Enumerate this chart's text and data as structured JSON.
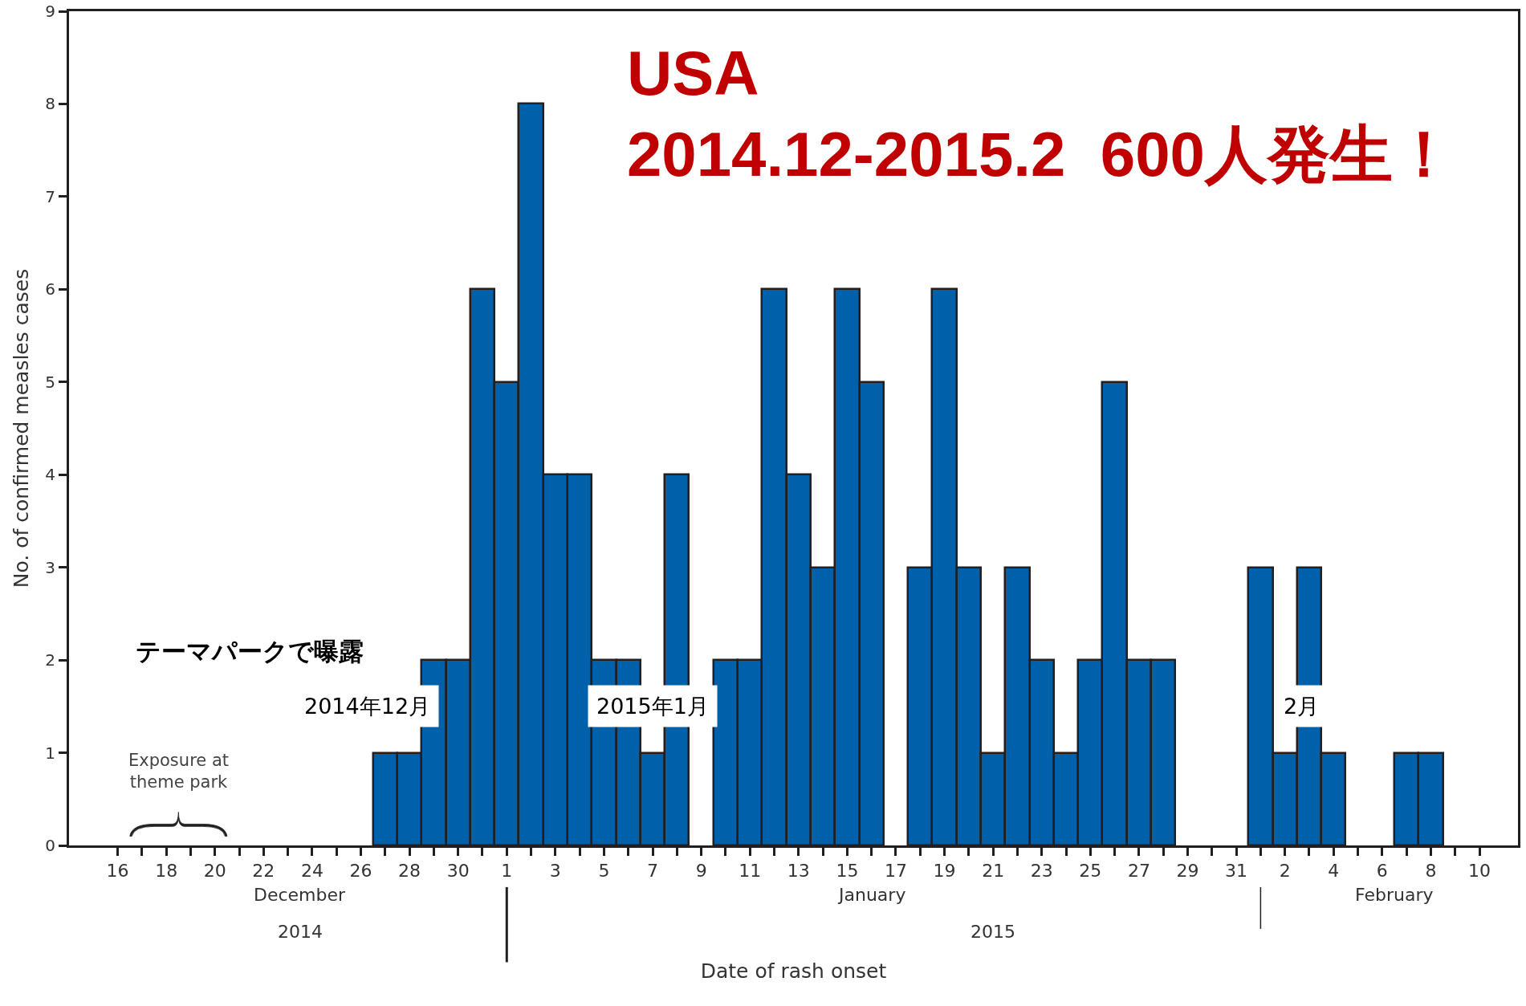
{
  "chart_data": {
    "type": "bar",
    "title": "USA\n2014.12-2015.2  600人発生！",
    "xlabel": "Date of rash onset",
    "ylabel": "No. of confirmed measles cases",
    "x": [
      "2014-12-27",
      "2014-12-28",
      "2014-12-29",
      "2014-12-30",
      "2014-12-31",
      "2015-01-01",
      "2015-01-02",
      "2015-01-03",
      "2015-01-04",
      "2015-01-05",
      "2015-01-06",
      "2015-01-07",
      "2015-01-08",
      "2015-01-10",
      "2015-01-11",
      "2015-01-12",
      "2015-01-13",
      "2015-01-14",
      "2015-01-15",
      "2015-01-16",
      "2015-01-18",
      "2015-01-19",
      "2015-01-20",
      "2015-01-21",
      "2015-01-22",
      "2015-01-23",
      "2015-01-24",
      "2015-01-25",
      "2015-01-26",
      "2015-01-27",
      "2015-01-28",
      "2015-02-01",
      "2015-02-02",
      "2015-02-03",
      "2015-02-04",
      "2015-02-07",
      "2015-02-08"
    ],
    "values": [
      1,
      1,
      2,
      2,
      6,
      5,
      8,
      4,
      4,
      2,
      2,
      1,
      4,
      2,
      2,
      6,
      4,
      3,
      6,
      5,
      3,
      6,
      3,
      1,
      3,
      2,
      1,
      2,
      5,
      2,
      2,
      3,
      1,
      3,
      1,
      1,
      1
    ],
    "color": "#0060aa",
    "grid": false,
    "legend": false,
    "ylim": [
      0,
      9
    ],
    "yticks": [
      0,
      1,
      2,
      3,
      4,
      5,
      6,
      7,
      8,
      9
    ],
    "xlim": [
      "2014-12-14",
      "2015-02-11T14:00"
    ],
    "xticks": [
      {
        "value": "2014-12-16",
        "label": "16"
      },
      {
        "value": "2014-12-17",
        "label": null
      },
      {
        "value": "2014-12-18",
        "label": "18"
      },
      {
        "value": "2014-12-19",
        "label": null
      },
      {
        "value": "2014-12-20",
        "label": "20"
      },
      {
        "value": "2014-12-21",
        "label": null
      },
      {
        "value": "2014-12-22",
        "label": "22"
      },
      {
        "value": "2014-12-23",
        "label": null
      },
      {
        "value": "2014-12-24",
        "label": "24"
      },
      {
        "value": "2014-12-25",
        "label": null
      },
      {
        "value": "2014-12-26",
        "label": "26"
      },
      {
        "value": "2014-12-27",
        "label": null
      },
      {
        "value": "2014-12-28",
        "label": "28"
      },
      {
        "value": "2014-12-29",
        "label": null
      },
      {
        "value": "2014-12-30",
        "label": "30"
      },
      {
        "value": "2014-12-31",
        "label": null
      },
      {
        "value": "2015-01-01",
        "label": "1"
      },
      {
        "value": "2015-01-02",
        "label": null
      },
      {
        "value": "2015-01-03",
        "label": "3"
      },
      {
        "value": "2015-01-04",
        "label": null
      },
      {
        "value": "2015-01-05",
        "label": "5"
      },
      {
        "value": "2015-01-06",
        "label": null
      },
      {
        "value": "2015-01-07",
        "label": "7"
      },
      {
        "value": "2015-01-08",
        "label": null
      },
      {
        "value": "2015-01-09",
        "label": "9"
      },
      {
        "value": "2015-01-10",
        "label": null
      },
      {
        "value": "2015-01-11",
        "label": "11"
      },
      {
        "value": "2015-01-12",
        "label": null
      },
      {
        "value": "2015-01-13",
        "label": "13"
      },
      {
        "value": "2015-01-14",
        "label": null
      },
      {
        "value": "2015-01-15",
        "label": "15"
      },
      {
        "value": "2015-01-16",
        "label": null
      },
      {
        "value": "2015-01-17",
        "label": "17"
      },
      {
        "value": "2015-01-18",
        "label": null
      },
      {
        "value": "2015-01-19",
        "label": "19"
      },
      {
        "value": "2015-01-20",
        "label": null
      },
      {
        "value": "2015-01-21",
        "label": "21"
      },
      {
        "value": "2015-01-22",
        "label": null
      },
      {
        "value": "2015-01-23",
        "label": "23"
      },
      {
        "value": "2015-01-24",
        "label": null
      },
      {
        "value": "2015-01-25",
        "label": "25"
      },
      {
        "value": "2015-01-26",
        "label": null
      },
      {
        "value": "2015-01-27",
        "label": "27"
      },
      {
        "value": "2015-01-28",
        "label": null
      },
      {
        "value": "2015-01-29",
        "label": "29"
      },
      {
        "value": "2015-01-30",
        "label": null
      },
      {
        "value": "2015-01-31",
        "label": "31"
      },
      {
        "value": "2015-02-01",
        "label": null
      },
      {
        "value": "2015-02-02",
        "label": "2"
      },
      {
        "value": "2015-02-03",
        "label": null
      },
      {
        "value": "2015-02-04",
        "label": "4"
      },
      {
        "value": "2015-02-05",
        "label": null
      },
      {
        "value": "2015-02-06",
        "label": "6"
      },
      {
        "value": "2015-02-07",
        "label": null
      },
      {
        "value": "2015-02-08",
        "label": "8"
      },
      {
        "value": "2015-02-09",
        "label": null
      },
      {
        "value": "2015-02-10",
        "label": "10"
      }
    ],
    "annotations": [
      "December",
      "January",
      "February",
      "2014",
      "2015",
      "Exposure at\ntheme park",
      "テーマパークで曝露",
      "2014年12月",
      "2015年1月",
      "2月"
    ]
  }
}
